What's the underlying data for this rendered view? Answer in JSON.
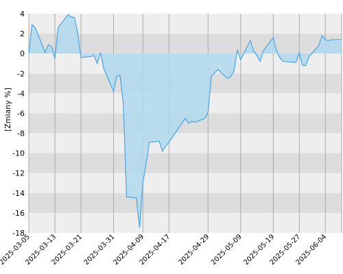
{
  "chart_data": {
    "type": "area",
    "ylabel": "[Zmiany %]",
    "ylim": [
      -18,
      4
    ],
    "yticks": [
      4,
      2,
      0,
      -2,
      -4,
      -6,
      -8,
      -10,
      -12,
      -14,
      -16,
      -18
    ],
    "xlim": [
      "2025-03-05",
      "2025-06-09"
    ],
    "xticks": [
      "2025-03-05",
      "2025-03-13",
      "2025-03-21",
      "2025-03-31",
      "2025-04-09",
      "2025-04-17",
      "2025-04-29",
      "2025-05-09",
      "2025-05-19",
      "2025-05-27",
      "2025-06-04"
    ],
    "grid": "horizontal bands and vertical lines at date ticks",
    "colors": {
      "line": "#4aa3e0",
      "fill": "#b3d9ee",
      "band_light": "#eeeeee",
      "band_dark": "#dddddd",
      "gridline": "#aaaaaa"
    },
    "series": [
      {
        "x": [
          "2025-03-05",
          "2025-03-06",
          "2025-03-07",
          "2025-03-10",
          "2025-03-11",
          "2025-03-12",
          "2025-03-13",
          "2025-03-14",
          "2025-03-17",
          "2025-03-18",
          "2025-03-19",
          "2025-03-20",
          "2025-03-21",
          "2025-03-24",
          "2025-03-25",
          "2025-03-26",
          "2025-03-27",
          "2025-03-28",
          "2025-03-31",
          "2025-04-01",
          "2025-04-02",
          "2025-04-03",
          "2025-04-04",
          "2025-04-07",
          "2025-04-08",
          "2025-04-09",
          "2025-04-10",
          "2025-04-11",
          "2025-04-14",
          "2025-04-15",
          "2025-04-16",
          "2025-04-17",
          "2025-04-22",
          "2025-04-23",
          "2025-04-24",
          "2025-04-25",
          "2025-04-28",
          "2025-04-29",
          "2025-04-30",
          "2025-05-02",
          "2025-05-05",
          "2025-05-06",
          "2025-05-07",
          "2025-05-08",
          "2025-05-09",
          "2025-05-12",
          "2025-05-13",
          "2025-05-14",
          "2025-05-15",
          "2025-05-16",
          "2025-05-19",
          "2025-05-20",
          "2025-05-21",
          "2025-05-22",
          "2025-05-23",
          "2025-05-26",
          "2025-05-27",
          "2025-05-28",
          "2025-05-29",
          "2025-05-30",
          "2025-06-02",
          "2025-06-03",
          "2025-06-04",
          "2025-06-05",
          "2025-06-06",
          "2025-06-09"
        ],
        "values": [
          0.0,
          2.9,
          2.6,
          0.1,
          0.9,
          0.7,
          -0.5,
          2.6,
          3.9,
          3.7,
          3.6,
          2.0,
          -0.4,
          -0.3,
          -0.2,
          -1.0,
          0.1,
          -1.5,
          -3.8,
          -2.3,
          -2.2,
          -5.0,
          -14.4,
          -14.5,
          -17.5,
          -13.0,
          -11.0,
          -8.9,
          -8.8,
          -9.8,
          -9.3,
          -8.9,
          -6.5,
          -7.0,
          -6.8,
          -6.9,
          -6.5,
          -5.9,
          -2.3,
          -1.6,
          -2.5,
          -2.3,
          -1.7,
          0.4,
          -0.6,
          1.3,
          0.3,
          -0.2,
          -0.8,
          0.3,
          1.6,
          0.3,
          -0.4,
          -0.8,
          -0.8,
          -0.9,
          0.1,
          -1.2,
          -1.2,
          -0.3,
          0.8,
          1.8,
          1.4,
          1.3,
          1.4,
          1.4
        ]
      }
    ]
  }
}
